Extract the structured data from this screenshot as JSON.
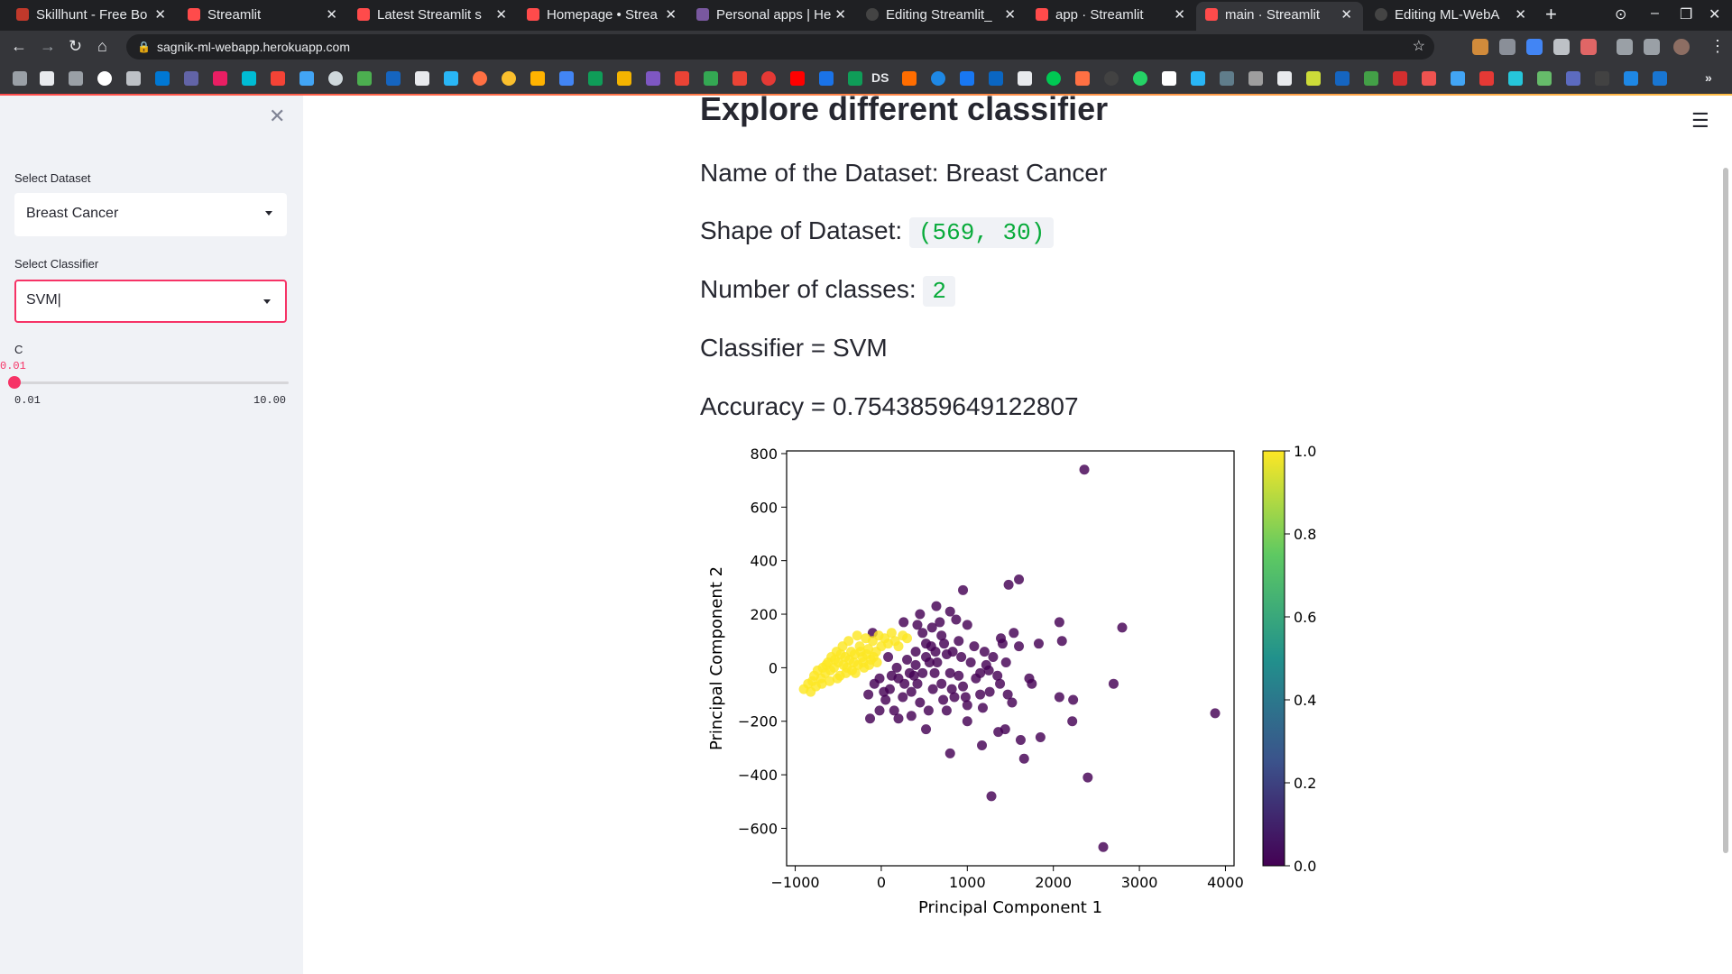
{
  "browser": {
    "tabs": [
      {
        "label": "Skillhunt - Free Bo",
        "icon": "skillhunt-favicon"
      },
      {
        "label": "Streamlit",
        "icon": "streamlit-favicon"
      },
      {
        "label": "Latest Streamlit s",
        "icon": "streamlit-favicon"
      },
      {
        "label": "Homepage • Strea",
        "icon": "streamlit-favicon"
      },
      {
        "label": "Personal apps | He",
        "icon": "heroku-favicon"
      },
      {
        "label": "Editing Streamlit_",
        "icon": "github-favicon"
      },
      {
        "label": "app · Streamlit",
        "icon": "streamlit-favicon"
      },
      {
        "label": "main · Streamlit",
        "icon": "streamlit-favicon",
        "active": true
      },
      {
        "label": "Editing ML-WebA",
        "icon": "github-favicon"
      }
    ],
    "url": "sagnik-ml-webapp.herokuapp.com",
    "bookmark_text": "DS"
  },
  "sidebar": {
    "dataset_label": "Select Dataset",
    "dataset_value": "Breast Cancer",
    "classifier_label": "Select Classifier",
    "classifier_value": "SVM|",
    "slider": {
      "label": "C",
      "value": "0.01",
      "min": "0.01",
      "max": "10.00",
      "fraction": 0.0
    }
  },
  "main": {
    "title": "Explore different classifier",
    "dataset_name_text": "Name of the Dataset: Breast Cancer",
    "shape_label": "Shape of Dataset:",
    "shape_value": "(569, 30)",
    "classes_label": "Number of classes:",
    "classes_value": "2",
    "classifier_text": "Classifier = SVM",
    "accuracy_text": "Accuracy = 0.7543859649122807"
  },
  "chart_data": {
    "type": "scatter",
    "xlabel": "Principal Component 1",
    "ylabel": "Principal Component 2",
    "xlim": [
      -1100,
      4100
    ],
    "ylim": [
      -740,
      810
    ],
    "xticks": [
      "−1000",
      "0",
      "1000",
      "2000",
      "3000",
      "4000"
    ],
    "xtick_values": [
      -1000,
      0,
      1000,
      2000,
      3000,
      4000
    ],
    "yticks": [
      "800",
      "600",
      "400",
      "200",
      "0",
      "−200",
      "−400",
      "−600"
    ],
    "ytick_values": [
      800,
      600,
      400,
      200,
      0,
      -200,
      -400,
      -600
    ],
    "colorbar": {
      "ticks": [
        "1.0",
        "0.8",
        "0.6",
        "0.4",
        "0.2",
        "0.0"
      ],
      "colormap": "viridis",
      "range": [
        0,
        1
      ]
    },
    "colors": {
      "class_0": "#440154",
      "class_1": "#fde725"
    },
    "series": [
      {
        "class": 0,
        "points": [
          [
            2360,
            740
          ],
          [
            1600,
            330
          ],
          [
            1480,
            310
          ],
          [
            950,
            290
          ],
          [
            2800,
            150
          ],
          [
            2070,
            170
          ],
          [
            2100,
            100
          ],
          [
            1830,
            90
          ],
          [
            1390,
            110
          ],
          [
            640,
            230
          ],
          [
            800,
            210
          ],
          [
            870,
            180
          ],
          [
            1000,
            160
          ],
          [
            260,
            170
          ],
          [
            450,
            200
          ],
          [
            590,
            150
          ],
          [
            700,
            120
          ],
          [
            520,
            90
          ],
          [
            900,
            100
          ],
          [
            1200,
            60
          ],
          [
            1300,
            40
          ],
          [
            1450,
            20
          ],
          [
            1350,
            -30
          ],
          [
            1100,
            -40
          ],
          [
            950,
            -70
          ],
          [
            800,
            -20
          ],
          [
            650,
            20
          ],
          [
            400,
            60
          ],
          [
            300,
            30
          ],
          [
            200,
            -40
          ],
          [
            100,
            -80
          ],
          [
            50,
            -120
          ],
          [
            150,
            -160
          ],
          [
            250,
            -110
          ],
          [
            350,
            -90
          ],
          [
            450,
            -130
          ],
          [
            550,
            -160
          ],
          [
            600,
            -80
          ],
          [
            700,
            -60
          ],
          [
            850,
            -110
          ],
          [
            1000,
            -140
          ],
          [
            1150,
            -100
          ],
          [
            1260,
            -90
          ],
          [
            1380,
            -60
          ],
          [
            1470,
            -100
          ],
          [
            1720,
            -40
          ],
          [
            1750,
            -60
          ],
          [
            2070,
            -110
          ],
          [
            2230,
            -120
          ],
          [
            2700,
            -60
          ],
          [
            3880,
            -170
          ],
          [
            2220,
            -200
          ],
          [
            2400,
            -410
          ],
          [
            2580,
            -670
          ],
          [
            1850,
            -260
          ],
          [
            1620,
            -270
          ],
          [
            1440,
            -230
          ],
          [
            1360,
            -240
          ],
          [
            1170,
            -290
          ],
          [
            1660,
            -340
          ],
          [
            800,
            -320
          ],
          [
            1280,
            -480
          ],
          [
            -130,
            -190
          ],
          [
            200,
            -190
          ],
          [
            350,
            -180
          ],
          [
            520,
            -230
          ],
          [
            -20,
            -160
          ],
          [
            1000,
            -200
          ],
          [
            1220,
            10
          ],
          [
            1040,
            20
          ],
          [
            930,
            40
          ],
          [
            830,
            60
          ],
          [
            730,
            90
          ],
          [
            630,
            60
          ],
          [
            560,
            20
          ],
          [
            480,
            -20
          ],
          [
            420,
            -60
          ],
          [
            380,
            -30
          ],
          [
            480,
            130
          ],
          [
            580,
            80
          ],
          [
            680,
            170
          ],
          [
            760,
            50
          ],
          [
            1080,
            80
          ],
          [
            1150,
            -20
          ],
          [
            1250,
            -10
          ],
          [
            900,
            -30
          ],
          [
            820,
            -80
          ],
          [
            720,
            -120
          ],
          [
            620,
            -20
          ],
          [
            520,
            40
          ],
          [
            400,
            10
          ],
          [
            330,
            -20
          ],
          [
            270,
            -60
          ],
          [
            180,
            0
          ],
          [
            120,
            -30
          ],
          [
            80,
            40
          ],
          [
            -20,
            -40
          ],
          [
            30,
            -90
          ],
          [
            -80,
            -60
          ],
          [
            -150,
            -100
          ],
          [
            -100,
            130
          ],
          [
            420,
            160
          ],
          [
            760,
            -160
          ],
          [
            980,
            -110
          ],
          [
            1180,
            -150
          ],
          [
            1540,
            130
          ],
          [
            1600,
            80
          ],
          [
            1410,
            90
          ],
          [
            1520,
            -130
          ]
        ]
      },
      {
        "class": 1,
        "points": [
          [
            -900,
            -80
          ],
          [
            -850,
            -60
          ],
          [
            -800,
            -50
          ],
          [
            -780,
            -30
          ],
          [
            -760,
            -70
          ],
          [
            -700,
            -40
          ],
          [
            -680,
            0
          ],
          [
            -650,
            -20
          ],
          [
            -620,
            20
          ],
          [
            -600,
            -50
          ],
          [
            -580,
            40
          ],
          [
            -550,
            0
          ],
          [
            -520,
            60
          ],
          [
            -500,
            20
          ],
          [
            -480,
            -30
          ],
          [
            -450,
            80
          ],
          [
            -420,
            40
          ],
          [
            -400,
            0
          ],
          [
            -380,
            100
          ],
          [
            -350,
            60
          ],
          [
            -320,
            20
          ],
          [
            -300,
            -20
          ],
          [
            -280,
            120
          ],
          [
            -250,
            80
          ],
          [
            -220,
            40
          ],
          [
            -200,
            0
          ],
          [
            -180,
            110
          ],
          [
            -150,
            70
          ],
          [
            -120,
            30
          ],
          [
            -100,
            100
          ],
          [
            -60,
            60
          ],
          [
            -30,
            120
          ],
          [
            0,
            80
          ],
          [
            40,
            110
          ],
          [
            80,
            90
          ],
          [
            120,
            130
          ],
          [
            160,
            100
          ],
          [
            200,
            80
          ],
          [
            250,
            120
          ],
          [
            300,
            110
          ],
          [
            -820,
            -90
          ],
          [
            -740,
            -10
          ],
          [
            -690,
            -60
          ],
          [
            -640,
            10
          ],
          [
            -590,
            -10
          ],
          [
            -540,
            30
          ],
          [
            -510,
            -40
          ],
          [
            -470,
            50
          ],
          [
            -440,
            10
          ],
          [
            -410,
            -20
          ],
          [
            -370,
            30
          ],
          [
            -340,
            -10
          ],
          [
            -310,
            50
          ],
          [
            -270,
            10
          ],
          [
            -240,
            60
          ],
          [
            -210,
            20
          ],
          [
            -170,
            50
          ],
          [
            -140,
            10
          ],
          [
            -90,
            40
          ],
          [
            -50,
            20
          ]
        ]
      }
    ]
  }
}
